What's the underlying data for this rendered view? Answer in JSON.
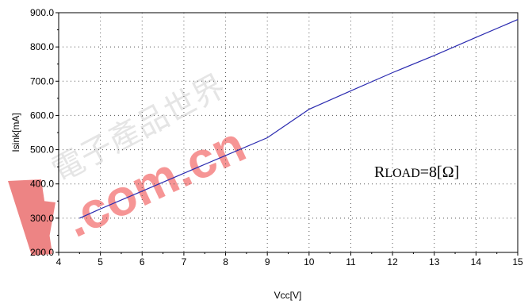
{
  "chart_data": {
    "type": "line",
    "xlabel": "Vcc[V]",
    "ylabel": "Isink[mA]",
    "xlim": [
      4,
      15
    ],
    "ylim": [
      200,
      900
    ],
    "x_ticks": [
      "4",
      "5",
      "6",
      "7",
      "8",
      "9",
      "10",
      "11",
      "12",
      "13",
      "14",
      "15"
    ],
    "y_ticks": [
      "200.0",
      "300.0",
      "400.0",
      "500.0",
      "600.0",
      "700.0",
      "800.0",
      "900.0"
    ],
    "grid": true,
    "series": [
      {
        "x": [
          4.5,
          5,
          6,
          7,
          8,
          9,
          10,
          11,
          12,
          13,
          14,
          15
        ],
        "y": [
          300,
          327,
          379,
          431,
          483,
          535,
          618,
          672,
          725,
          775,
          828,
          880
        ]
      }
    ],
    "line_color": "#2b2bb0",
    "annotation": {
      "main": "R",
      "sub": "LOAD",
      "rest": "=8[Ω]"
    }
  },
  "watermark": {
    "text": ".com.cn",
    "glyphs": "電子產品世界"
  }
}
